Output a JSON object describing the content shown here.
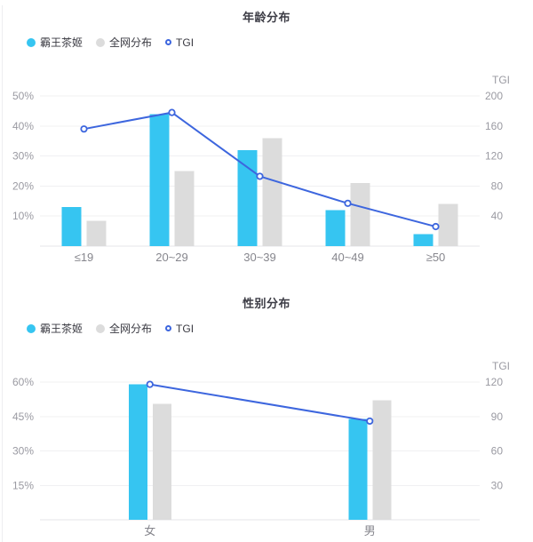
{
  "page": {
    "background": "#ffffff"
  },
  "colors": {
    "brand_bar": "#36c5f1",
    "network_bar": "#dcdcdc",
    "tgi_line": "#3d66de",
    "marker_fill": "#ffffff",
    "grid_line": "#f0f0f2",
    "axis_line": "#e4e4e8",
    "tick_text": "#9a9aa2",
    "category_text": "#86868d",
    "title_text": "#3d3d46"
  },
  "chart_data": [
    {
      "type": "bar",
      "title": "年龄分布",
      "categories": [
        "≤19",
        "20~29",
        "30~39",
        "40~49",
        "≥50"
      ],
      "series": [
        {
          "name": "霸王茶姬",
          "kind": "bar",
          "axis": "left",
          "unit": "%",
          "values": [
            13,
            44,
            32,
            12,
            4
          ],
          "color": "#36c5f1"
        },
        {
          "name": "全网分布",
          "kind": "bar",
          "axis": "left",
          "unit": "%",
          "values": [
            8.5,
            25,
            36,
            21,
            14
          ],
          "color": "#dcdcdc"
        },
        {
          "name": "TGI",
          "kind": "line",
          "axis": "right",
          "values": [
            156,
            178,
            93,
            57,
            26
          ],
          "color": "#3d66de"
        }
      ],
      "left_axis": {
        "tick_labels": [
          "50%",
          "40%",
          "30%",
          "20%",
          "10%"
        ],
        "max": 50,
        "min": 0,
        "step": 10,
        "unit": "%"
      },
      "right_axis": {
        "title": "TGI",
        "tick_labels": [
          "200",
          "160",
          "120",
          "80",
          "40"
        ],
        "max": 200,
        "min": 0,
        "step": 40
      },
      "legend_position": "top-left",
      "grid": true
    },
    {
      "type": "bar",
      "title": "性别分布",
      "categories": [
        "女",
        "男"
      ],
      "series": [
        {
          "name": "霸王茶姬",
          "kind": "bar",
          "axis": "left",
          "unit": "%",
          "values": [
            59,
            44
          ],
          "color": "#36c5f1"
        },
        {
          "name": "全网分布",
          "kind": "bar",
          "axis": "left",
          "unit": "%",
          "values": [
            50.5,
            52
          ],
          "color": "#dcdcdc"
        },
        {
          "name": "TGI",
          "kind": "line",
          "axis": "right",
          "values": [
            118,
            86
          ],
          "color": "#3d66de"
        }
      ],
      "left_axis": {
        "tick_labels": [
          "60%",
          "45%",
          "30%",
          "15%"
        ],
        "max": 60,
        "min": 0,
        "step": 15,
        "unit": "%"
      },
      "right_axis": {
        "title": "TGI",
        "tick_labels": [
          "120",
          "90",
          "60",
          "30"
        ],
        "max": 120,
        "min": 0,
        "step": 30
      },
      "legend_position": "top-left",
      "grid": true
    }
  ]
}
